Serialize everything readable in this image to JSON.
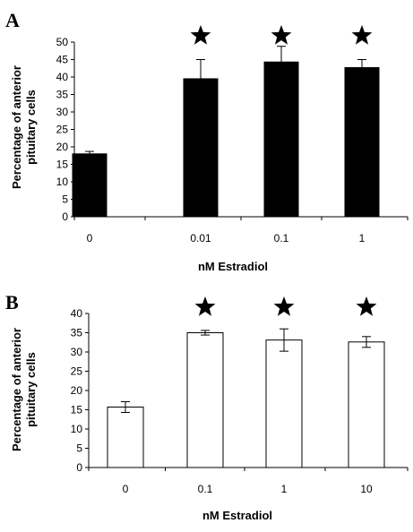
{
  "chart_data": [
    {
      "type": "bar",
      "panel_label": "A",
      "categories": [
        "0",
        "0.01",
        "0.1",
        "1"
      ],
      "values": [
        18,
        39.5,
        44.3,
        42.7
      ],
      "errors": [
        0.7,
        5.5,
        4.5,
        2.3
      ],
      "significance": [
        false,
        true,
        true,
        true
      ],
      "bar_color": "#000000",
      "title": "",
      "xlabel": "nM Estradiol",
      "ylabel": [
        "Percentage of anterior",
        "pituitary cells"
      ],
      "ylim": [
        0,
        50
      ],
      "yticks": [
        "0",
        "5",
        "10",
        "15",
        "20",
        "25",
        "30",
        "35",
        "40",
        "45",
        "50"
      ],
      "grid": false
    },
    {
      "type": "bar",
      "panel_label": "B",
      "categories": [
        "0",
        "0.1",
        "1",
        "10"
      ],
      "values": [
        15.7,
        35,
        33.1,
        32.6
      ],
      "errors": [
        1.4,
        0.6,
        2.9,
        1.4
      ],
      "significance": [
        false,
        true,
        true,
        true
      ],
      "bar_color": "#ffffff",
      "title": "",
      "xlabel": "nM Estradiol",
      "ylabel": [
        "Percentage of anterior",
        "pituitary cells"
      ],
      "ylim": [
        0,
        40
      ],
      "yticks": [
        "0",
        "5",
        "10",
        "15",
        "20",
        "25",
        "30",
        "35",
        "40"
      ],
      "grid": false
    }
  ]
}
